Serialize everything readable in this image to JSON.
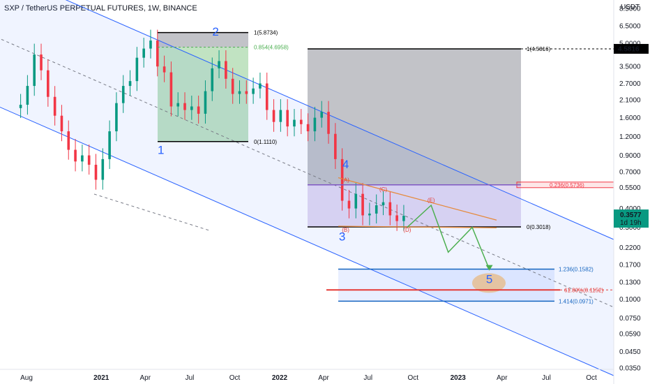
{
  "header": {
    "title": "SXP / TetherUS PERPETUAL FUTURES, 1W, BINANCE"
  },
  "price_axis": {
    "currency": "USDT",
    "ticks": [
      8.5,
      6.5,
      5.0,
      3.5,
      2.7,
      2.1,
      1.6,
      1.2,
      0.9,
      0.7,
      0.55,
      0.4,
      0.3,
      0.22,
      0.17,
      0.13,
      0.1,
      0.075,
      0.059,
      0.045,
      0.035
    ],
    "tick_labels": [
      "8.5000",
      "6.5000",
      "5.0000",
      "3.5000",
      "2.7000",
      "2.1000",
      "1.6000",
      "1.2000",
      "0.9000",
      "0.7000",
      "0.5500",
      "0.4000",
      "0.3000",
      "0.2200",
      "0.1700",
      "0.1300",
      "0.1000",
      "0.0750",
      "0.0590",
      "0.0450",
      "0.0350"
    ],
    "marker_top": {
      "value": 4.5816,
      "label": "4.5816",
      "color": "#000000"
    },
    "marker_last": {
      "value": 0.3577,
      "label": "0.3577",
      "countdown": "1d 19h",
      "color": "#089981"
    }
  },
  "time_axis": {
    "labels": [
      "Aug",
      "2021",
      "Apr",
      "Jul",
      "Oct",
      "2022",
      "Apr",
      "Jul",
      "Oct",
      "2023",
      "Apr",
      "Jul",
      "Oct"
    ],
    "dates": [
      "2020-08-01",
      "2021-01-01",
      "2021-04-01",
      "2021-07-01",
      "2021-10-01",
      "2022-01-01",
      "2022-04-01",
      "2022-07-01",
      "2022-10-01",
      "2023-01-01",
      "2023-04-01",
      "2023-07-01",
      "2023-10-01"
    ],
    "bold": [
      false,
      true,
      false,
      false,
      false,
      true,
      false,
      false,
      false,
      true,
      false,
      false,
      false
    ]
  },
  "chart_data": {
    "type": "candlestick",
    "symbol": "SXP / TetherUS PERPETUAL FUTURES",
    "interval": "1W",
    "exchange": "BINANCE",
    "y_scale": "log",
    "ylim": [
      0.035,
      9.5
    ],
    "xlim": [
      "2020-07-13",
      "2023-11-20"
    ],
    "grid": false,
    "colors": {
      "up": "#089981",
      "down": "#f23645"
    },
    "series": [
      {
        "date": "2020-07-20",
        "close": 1.95
      },
      {
        "date": "2020-08-03",
        "close": 2.6
      },
      {
        "date": "2020-08-17",
        "close": 4.2
      },
      {
        "date": "2020-08-31",
        "close": 3.3
      },
      {
        "date": "2020-09-14",
        "close": 2.2
      },
      {
        "date": "2020-09-28",
        "close": 1.65
      },
      {
        "date": "2020-10-12",
        "close": 1.3
      },
      {
        "date": "2020-10-26",
        "close": 0.98
      },
      {
        "date": "2020-11-09",
        "close": 0.82
      },
      {
        "date": "2020-11-23",
        "close": 0.9
      },
      {
        "date": "2020-12-07",
        "close": 0.78
      },
      {
        "date": "2020-12-21",
        "close": 0.62
      },
      {
        "date": "2021-01-04",
        "close": 0.85
      },
      {
        "date": "2021-01-18",
        "close": 1.3
      },
      {
        "date": "2021-02-01",
        "close": 2.0
      },
      {
        "date": "2021-02-15",
        "close": 2.6
      },
      {
        "date": "2021-03-01",
        "close": 2.8
      },
      {
        "date": "2021-03-15",
        "close": 4.0
      },
      {
        "date": "2021-03-29",
        "close": 4.6
      },
      {
        "date": "2021-04-12",
        "close": 5.2
      },
      {
        "date": "2021-04-26",
        "close": 3.5
      },
      {
        "date": "2021-05-10",
        "close": 3.2
      },
      {
        "date": "2021-05-24",
        "close": 1.9
      },
      {
        "date": "2021-06-07",
        "close": 2.0
      },
      {
        "date": "2021-06-21",
        "close": 1.8
      },
      {
        "date": "2021-07-05",
        "close": 1.9
      },
      {
        "date": "2021-07-19",
        "close": 1.7
      },
      {
        "date": "2021-08-02",
        "close": 2.4
      },
      {
        "date": "2021-08-16",
        "close": 3.4
      },
      {
        "date": "2021-08-30",
        "close": 3.8
      },
      {
        "date": "2021-09-13",
        "close": 2.9
      },
      {
        "date": "2021-09-27",
        "close": 2.3
      },
      {
        "date": "2021-10-11",
        "close": 2.4
      },
      {
        "date": "2021-10-25",
        "close": 2.3
      },
      {
        "date": "2021-11-08",
        "close": 2.5
      },
      {
        "date": "2021-11-22",
        "close": 2.7
      },
      {
        "date": "2021-12-06",
        "close": 1.8
      },
      {
        "date": "2021-12-20",
        "close": 1.5
      },
      {
        "date": "2022-01-03",
        "close": 1.8
      },
      {
        "date": "2022-01-17",
        "close": 1.4
      },
      {
        "date": "2022-01-31",
        "close": 1.55
      },
      {
        "date": "2022-02-14",
        "close": 1.45
      },
      {
        "date": "2022-02-28",
        "close": 1.3
      },
      {
        "date": "2022-03-14",
        "close": 1.6
      },
      {
        "date": "2022-03-28",
        "close": 1.75
      },
      {
        "date": "2022-04-11",
        "close": 1.25
      },
      {
        "date": "2022-04-25",
        "close": 0.85
      },
      {
        "date": "2022-05-09",
        "close": 0.45
      },
      {
        "date": "2022-05-23",
        "close": 0.4
      },
      {
        "date": "2022-06-06",
        "close": 0.5
      },
      {
        "date": "2022-06-20",
        "close": 0.36
      },
      {
        "date": "2022-07-04",
        "close": 0.37
      },
      {
        "date": "2022-07-18",
        "close": 0.42
      },
      {
        "date": "2022-08-01",
        "close": 0.44
      },
      {
        "date": "2022-08-15",
        "close": 0.36
      },
      {
        "date": "2022-08-29",
        "close": 0.33
      },
      {
        "date": "2022-09-12",
        "close": 0.3577
      }
    ],
    "wave_labels": [
      {
        "label": "1",
        "date": "2021-05-03",
        "value": 0.92
      },
      {
        "label": "2",
        "date": "2021-08-23",
        "value": 5.6
      },
      {
        "label": "3",
        "date": "2022-05-09",
        "value": 0.245
      },
      {
        "label": "4",
        "date": "2022-05-16",
        "value": 0.74
      },
      {
        "label": "5",
        "date": "2023-03-06",
        "value": 0.128
      }
    ],
    "subwave_labels": [
      {
        "label": "(A)",
        "date": "2022-05-16",
        "value": 0.6
      },
      {
        "label": "(B)",
        "date": "2022-05-16",
        "value": 0.28
      },
      {
        "label": "(C)",
        "date": "2022-08-01",
        "value": 0.52
      },
      {
        "label": "(D)",
        "date": "2022-09-19",
        "value": 0.28
      },
      {
        "label": "(E)",
        "date": "2022-11-07",
        "value": 0.44
      }
    ],
    "fib_labels": [
      {
        "label": "1(5.8734)",
        "value": 5.8734
      },
      {
        "label": "0.854(4.6958)",
        "value": 4.6958
      },
      {
        "label": "0(1.1110)",
        "value": 1.111
      },
      {
        "label": "1(4.5816)",
        "value": 4.5816
      },
      {
        "label": "0.236(0.5736)",
        "value": 0.5736
      },
      {
        "label": "0(0.3018)",
        "value": 0.3018
      },
      {
        "label": "1.236(0.1582)",
        "value": 0.1582
      },
      {
        "label": "61.80%(0.1152)",
        "value": 0.1152
      },
      {
        "label": "1.414(0.0971)",
        "value": 0.0971
      }
    ],
    "projection_path": [
      {
        "date": "2022-09-19",
        "value": 0.3
      },
      {
        "date": "2022-11-07",
        "value": 0.42
      },
      {
        "date": "2022-12-12",
        "value": 0.205
      },
      {
        "date": "2023-01-30",
        "value": 0.3
      },
      {
        "date": "2023-03-06",
        "value": 0.158
      }
    ]
  }
}
